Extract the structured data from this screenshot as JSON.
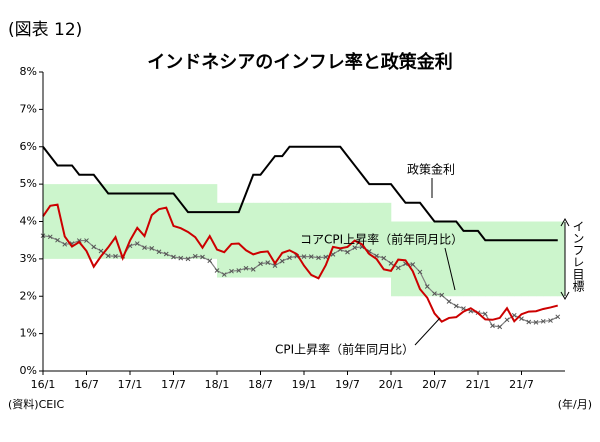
{
  "figure_label": "(図表 12)",
  "source": "(資料)CEIC",
  "chart_data": {
    "type": "line",
    "title": "インドネシアのインフレ率と政策金利",
    "x_unit_label": "(年/月)",
    "categories": [
      "16/1",
      null,
      null,
      null,
      null,
      null,
      "16/7",
      null,
      null,
      null,
      null,
      null,
      "17/1",
      null,
      null,
      null,
      null,
      null,
      "17/7",
      null,
      null,
      null,
      null,
      null,
      "18/1",
      null,
      null,
      null,
      null,
      null,
      "18/7",
      null,
      null,
      null,
      null,
      null,
      "19/1",
      null,
      null,
      null,
      null,
      null,
      "19/7",
      null,
      null,
      null,
      null,
      null,
      "20/1",
      null,
      null,
      null,
      null,
      null,
      "20/7",
      null,
      null,
      null,
      null,
      null,
      "21/1",
      null,
      null,
      null,
      null,
      null,
      "21/7",
      null,
      null,
      null,
      null,
      null
    ],
    "ylim": [
      0,
      8
    ],
    "yticks": [
      {
        "value": 0,
        "label": "0%"
      },
      {
        "value": 1,
        "label": "1%"
      },
      {
        "value": 2,
        "label": "2%"
      },
      {
        "value": 3,
        "label": "3%"
      },
      {
        "value": 4,
        "label": "4%"
      },
      {
        "value": 5,
        "label": "5%"
      },
      {
        "value": 6,
        "label": "6%"
      },
      {
        "value": 7,
        "label": "7%"
      },
      {
        "value": 8,
        "label": "8%"
      }
    ],
    "grid": false,
    "target_band": {
      "name": "インフレ目標",
      "color": "#ccf5cc",
      "lower": [
        3,
        3,
        3,
        3,
        3,
        3,
        3,
        3,
        3,
        3,
        3,
        3,
        3,
        3,
        3,
        3,
        3,
        3,
        3,
        3,
        3,
        3,
        3,
        3,
        2.5,
        2.5,
        2.5,
        2.5,
        2.5,
        2.5,
        2.5,
        2.5,
        2.5,
        2.5,
        2.5,
        2.5,
        2.5,
        2.5,
        2.5,
        2.5,
        2.5,
        2.5,
        2.5,
        2.5,
        2.5,
        2.5,
        2.5,
        2.5,
        2,
        2,
        2,
        2,
        2,
        2,
        2,
        2,
        2,
        2,
        2,
        2,
        2,
        2,
        2,
        2,
        2,
        2,
        2,
        2,
        2,
        2,
        2,
        2
      ],
      "upper": [
        5,
        5,
        5,
        5,
        5,
        5,
        5,
        5,
        5,
        5,
        5,
        5,
        5,
        5,
        5,
        5,
        5,
        5,
        5,
        5,
        5,
        5,
        5,
        5,
        4.5,
        4.5,
        4.5,
        4.5,
        4.5,
        4.5,
        4.5,
        4.5,
        4.5,
        4.5,
        4.5,
        4.5,
        4.5,
        4.5,
        4.5,
        4.5,
        4.5,
        4.5,
        4.5,
        4.5,
        4.5,
        4.5,
        4.5,
        4.5,
        4,
        4,
        4,
        4,
        4,
        4,
        4,
        4,
        4,
        4,
        4,
        4,
        4,
        4,
        4,
        4,
        4,
        4,
        4,
        4,
        4,
        4,
        4,
        4
      ]
    },
    "series": [
      {
        "name": "政策金利",
        "color": "#000000",
        "marker": false,
        "values": [
          6.0,
          5.75,
          5.5,
          5.5,
          5.5,
          5.25,
          5.25,
          5.25,
          5.0,
          4.75,
          4.75,
          4.75,
          4.75,
          4.75,
          4.75,
          4.75,
          4.75,
          4.75,
          4.75,
          4.5,
          4.25,
          4.25,
          4.25,
          4.25,
          4.25,
          4.25,
          4.25,
          4.25,
          4.75,
          5.25,
          5.25,
          5.5,
          5.75,
          5.75,
          6.0,
          6.0,
          6.0,
          6.0,
          6.0,
          6.0,
          6.0,
          6.0,
          5.75,
          5.5,
          5.25,
          5.0,
          5.0,
          5.0,
          5.0,
          4.75,
          4.5,
          4.5,
          4.5,
          4.25,
          4.0,
          4.0,
          4.0,
          4.0,
          3.75,
          3.75,
          3.75,
          3.5,
          3.5,
          3.5,
          3.5,
          3.5,
          3.5,
          3.5,
          3.5,
          3.5,
          3.5,
          3.5
        ]
      },
      {
        "name": "コアCPI上昇率（前年同月比）",
        "color": "#808080",
        "marker": true,
        "values": [
          3.62,
          3.59,
          3.5,
          3.39,
          3.41,
          3.49,
          3.49,
          3.32,
          3.21,
          3.08,
          3.07,
          3.07,
          3.35,
          3.41,
          3.3,
          3.28,
          3.19,
          3.13,
          3.05,
          3.02,
          3.0,
          3.07,
          3.05,
          2.95,
          2.69,
          2.58,
          2.67,
          2.69,
          2.75,
          2.72,
          2.87,
          2.9,
          2.82,
          2.94,
          3.03,
          3.07,
          3.06,
          3.06,
          3.03,
          3.05,
          3.12,
          3.25,
          3.18,
          3.3,
          3.32,
          3.2,
          3.08,
          3.02,
          2.88,
          2.76,
          2.87,
          2.85,
          2.65,
          2.26,
          2.07,
          2.03,
          1.86,
          1.74,
          1.67,
          1.6,
          1.56,
          1.53,
          1.21,
          1.18,
          1.37,
          1.49,
          1.4,
          1.31,
          1.3,
          1.33,
          1.35,
          1.45
        ]
      },
      {
        "name": "CPI上昇率（前年同月比）",
        "color": "#cc0000",
        "marker": false,
        "values": [
          4.14,
          4.42,
          4.45,
          3.6,
          3.33,
          3.45,
          3.21,
          2.79,
          3.07,
          3.31,
          3.58,
          3.02,
          3.49,
          3.83,
          3.61,
          4.17,
          4.33,
          4.37,
          3.88,
          3.82,
          3.72,
          3.58,
          3.3,
          3.61,
          3.25,
          3.18,
          3.4,
          3.41,
          3.23,
          3.12,
          3.18,
          3.2,
          2.88,
          3.16,
          3.23,
          3.13,
          2.82,
          2.57,
          2.48,
          2.83,
          3.32,
          3.28,
          3.32,
          3.49,
          3.39,
          3.13,
          3.0,
          2.72,
          2.68,
          2.98,
          2.96,
          2.67,
          2.19,
          1.96,
          1.54,
          1.32,
          1.42,
          1.44,
          1.59,
          1.68,
          1.55,
          1.38,
          1.37,
          1.42,
          1.68,
          1.33,
          1.52,
          1.59,
          1.6,
          1.66,
          1.7,
          1.75
        ]
      }
    ]
  }
}
